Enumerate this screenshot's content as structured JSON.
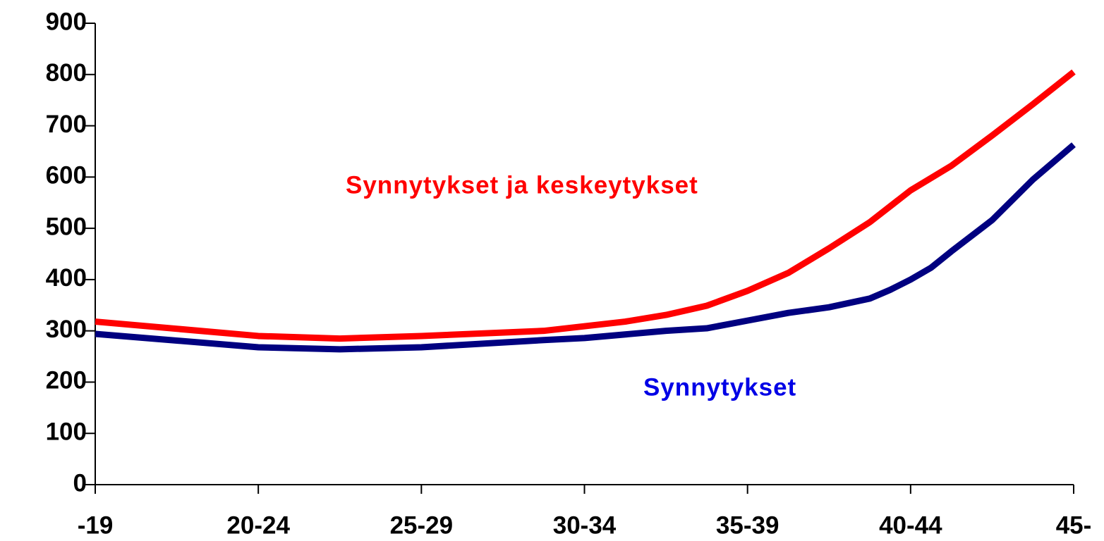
{
  "chart_data": {
    "type": "line",
    "xlim": [
      0,
      6
    ],
    "xticks": [
      {
        "value": 0,
        "label": "-19"
      },
      {
        "value": 1,
        "label": "20-24"
      },
      {
        "value": 2,
        "label": "25-29"
      },
      {
        "value": 3,
        "label": "30-34"
      },
      {
        "value": 4,
        "label": "35-39"
      },
      {
        "value": 5,
        "label": "40-44"
      },
      {
        "value": 6,
        "label": "45-"
      }
    ],
    "ylim": [
      0,
      900
    ],
    "yticks": [
      0,
      100,
      200,
      300,
      400,
      500,
      600,
      700,
      800,
      900
    ],
    "series": [
      {
        "name": "Synnytykset ja keskeytykset",
        "color": "#ff0000",
        "label_color": "#ff0000",
        "x": [
          0,
          1,
          1.5,
          2,
          2.75,
          3.25,
          3.5,
          3.75,
          4,
          4.25,
          4.5,
          4.75,
          5,
          5.25,
          5.5,
          5.75,
          6
        ],
        "values": [
          318,
          290,
          285,
          290,
          300,
          318,
          331,
          349,
          378,
          413,
          461,
          512,
          574,
          622,
          681,
          742,
          805
        ]
      },
      {
        "name": "Synnytykset",
        "color": "#000080",
        "label_color": "#0000e6",
        "x": [
          0,
          1,
          1.5,
          2,
          2.75,
          3,
          3.5,
          3.75,
          4,
          4.25,
          4.5,
          4.75,
          4.875,
          5,
          5.125,
          5.25,
          5.5,
          5.75,
          6
        ],
        "values": [
          294,
          268,
          264,
          268,
          282,
          286,
          300,
          305,
          320,
          335,
          346,
          363,
          380,
          400,
          423,
          455,
          516,
          595,
          663
        ]
      }
    ]
  }
}
